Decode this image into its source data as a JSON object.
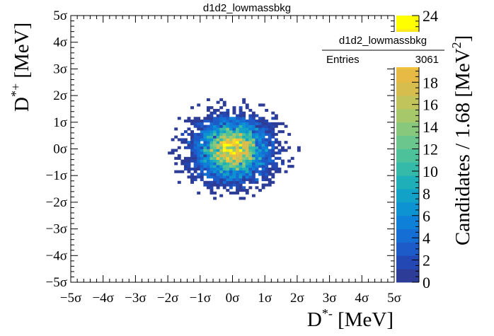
{
  "chart_data": {
    "type": "heatmap",
    "title": "d1d2_lowmassbkg",
    "xlabel": "D*- [MeV]",
    "ylabel": "D*+ [MeV]",
    "zlabel": "Candidates / 1.68 [MeV²]",
    "xlim": [
      -5,
      5
    ],
    "ylim": [
      -5,
      5
    ],
    "zlim": [
      0,
      24
    ],
    "x_tick_labels": [
      "−5σ",
      "−4σ",
      "−3σ",
      "−2σ",
      "−1σ",
      "0σ",
      "1σ",
      "2σ",
      "3σ",
      "4σ",
      "5σ"
    ],
    "y_tick_labels": [
      "−5σ",
      "−4σ",
      "−3σ",
      "−2σ",
      "−1σ",
      "0σ",
      "1σ",
      "2σ",
      "3σ",
      "4σ",
      "5σ"
    ],
    "z_tick_labels": [
      "0",
      "2",
      "4",
      "6",
      "8",
      "10",
      "12",
      "14",
      "16",
      "18",
      "24"
    ],
    "bins": 100,
    "distribution": {
      "shape": "2D gaussian",
      "mean_x": 0.0,
      "mean_y": 0.0,
      "sigma_x": 0.6,
      "sigma_y": 0.6,
      "peak_value": 20
    },
    "stats_box": {
      "name": "d1d2_lowmassbkg",
      "entries_label": "Entries",
      "entries_value": "3061"
    },
    "colors": {
      "palette": [
        "#2d3c96",
        "#2448b3",
        "#1d5bc8",
        "#156ed4",
        "#0f80d8",
        "#0d93d2",
        "#12a2c8",
        "#1fafb8",
        "#35b9a8",
        "#4dc29a",
        "#6ac68c",
        "#88c87c",
        "#a6c76a",
        "#c1c35b",
        "#d6bd4e",
        "#e6ba45",
        "#f2c23a",
        "#f9d52c",
        "#fde81c",
        "#ffff00"
      ]
    }
  }
}
